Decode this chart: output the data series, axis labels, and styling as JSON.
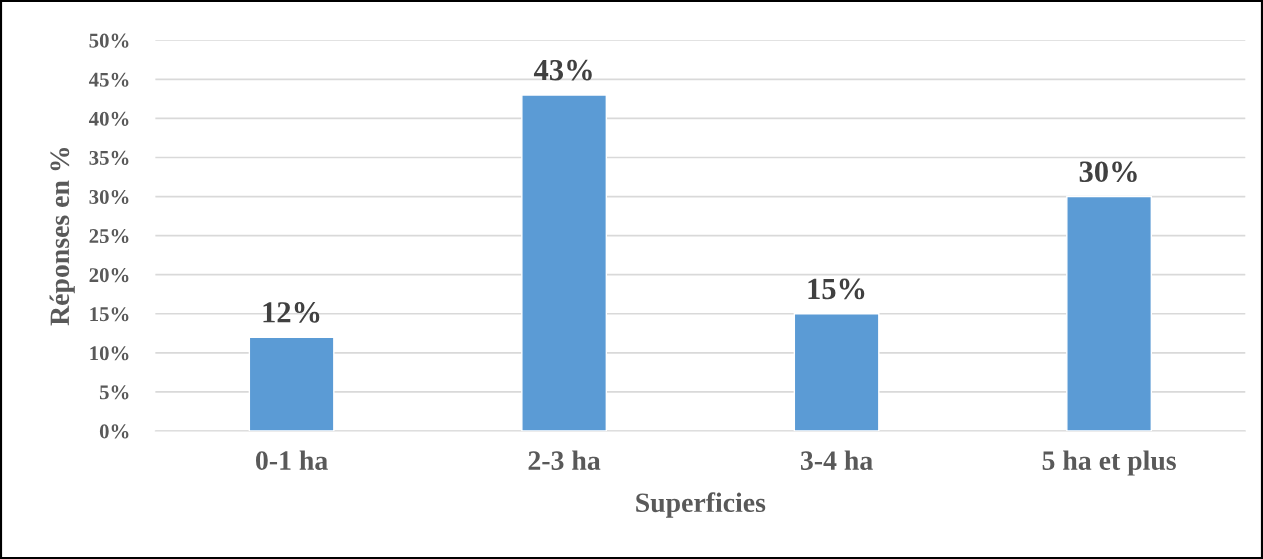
{
  "chart_data": {
    "type": "bar",
    "xlabel": "Superficies",
    "ylabel": "Réponses en %",
    "categories": [
      "0-1 ha",
      "2-3 ha",
      "3-4 ha",
      "5 ha et plus"
    ],
    "values": [
      12,
      43,
      15,
      30
    ],
    "color": "#5b9bd5",
    "value_labels": [
      "12%",
      "43%",
      "15%",
      "30%"
    ],
    "ylim": [
      0,
      50
    ],
    "yticks": [
      {
        "value": 0,
        "label": "0%"
      },
      {
        "value": 5,
        "label": "5%"
      },
      {
        "value": 10,
        "label": "10%"
      },
      {
        "value": 15,
        "label": "15%"
      },
      {
        "value": 20,
        "label": "20%"
      },
      {
        "value": 25,
        "label": "25%"
      },
      {
        "value": 30,
        "label": "30%"
      },
      {
        "value": 35,
        "label": "35%"
      },
      {
        "value": 40,
        "label": "40%"
      },
      {
        "value": 45,
        "label": "45%"
      },
      {
        "value": 50,
        "label": "50%"
      }
    ],
    "grid": "y",
    "legend": false
  }
}
